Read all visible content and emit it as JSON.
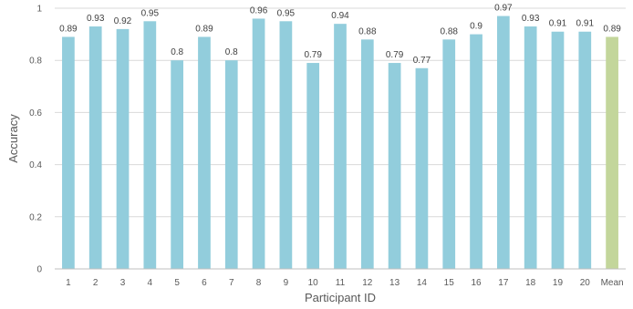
{
  "chart_data": {
    "type": "bar",
    "title": "",
    "xlabel": "Participant ID",
    "ylabel": "Accuracy",
    "ylim": [
      0,
      1
    ],
    "yticks": [
      "0",
      "0.2",
      "0.4",
      "0.6",
      "0.8",
      "1"
    ],
    "grid": true,
    "legend": "none",
    "categories": [
      "1",
      "2",
      "3",
      "4",
      "5",
      "6",
      "7",
      "8",
      "9",
      "10",
      "11",
      "12",
      "13",
      "14",
      "15",
      "16",
      "17",
      "18",
      "19",
      "20",
      "Mean"
    ],
    "values": [
      0.89,
      0.93,
      0.92,
      0.95,
      0.8,
      0.89,
      0.8,
      0.96,
      0.95,
      0.79,
      0.94,
      0.88,
      0.79,
      0.77,
      0.88,
      0.9,
      0.97,
      0.93,
      0.91,
      0.91,
      0.89
    ],
    "data_labels": [
      "0.89",
      "0.93",
      "0.92",
      "0.95",
      "0.8",
      "0.89",
      "0.8",
      "0.96",
      "0.95",
      "0.79",
      "0.94",
      "0.88",
      "0.79",
      "0.77",
      "0.88",
      "0.9",
      "0.97",
      "0.93",
      "0.91",
      "0.91",
      "0.89"
    ],
    "colors": {
      "bar": "#92cddc",
      "mean_bar": "#c3d69b"
    }
  }
}
